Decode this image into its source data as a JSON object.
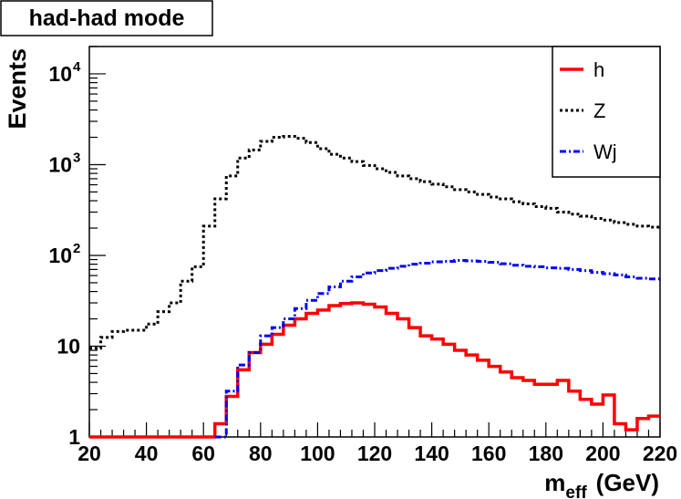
{
  "chart_data": {
    "type": "line",
    "title": "had-had mode",
    "xlabel_main": "m",
    "xlabel_sub": "eff",
    "xlabel_unit": "(GeV)",
    "ylabel": "Events",
    "xlim": [
      20,
      220
    ],
    "ylim": [
      1,
      20000
    ],
    "yscale": "log",
    "x_ticks": [
      "20",
      "40",
      "60",
      "80",
      "100",
      "120",
      "140",
      "160",
      "180",
      "200",
      "220"
    ],
    "y_ticks": [
      {
        "value": 1,
        "base": "1",
        "exp": ""
      },
      {
        "value": 10,
        "base": "10",
        "exp": ""
      },
      {
        "value": 100,
        "base": "10",
        "exp": "2"
      },
      {
        "value": 1000,
        "base": "10",
        "exp": "3"
      },
      {
        "value": 10000,
        "base": "10",
        "exp": "4"
      }
    ],
    "bin_width": 4,
    "legend_position": "top-right",
    "series": [
      {
        "name": "h",
        "color": "#ff0000",
        "style": "solid",
        "bin_starts": [
          20,
          24,
          28,
          32,
          36,
          40,
          44,
          48,
          52,
          56,
          60,
          64,
          68,
          72,
          76,
          80,
          84,
          88,
          92,
          96,
          100,
          104,
          108,
          112,
          116,
          120,
          124,
          128,
          132,
          136,
          140,
          144,
          148,
          152,
          156,
          160,
          164,
          168,
          172,
          176,
          180,
          184,
          188,
          192,
          196,
          200,
          204,
          208,
          212,
          216
        ],
        "values": [
          1,
          1,
          1,
          1,
          1,
          1,
          1,
          1,
          1,
          1,
          1,
          1.4,
          2.8,
          5.5,
          8.5,
          10.5,
          13.5,
          17,
          20,
          23,
          25,
          28,
          29.5,
          30,
          29,
          27,
          23,
          20,
          16,
          13,
          12,
          10.5,
          9,
          8,
          7,
          6,
          5.2,
          4.5,
          4.2,
          3.8,
          3.8,
          4.2,
          3.2,
          2.6,
          2.3,
          2.9,
          1.4,
          1.2,
          1.6,
          1.7
        ]
      },
      {
        "name": "Z",
        "color": "#000000",
        "style": "dotted",
        "bin_starts": [
          20,
          24,
          28,
          32,
          36,
          40,
          44,
          48,
          52,
          56,
          60,
          64,
          68,
          72,
          76,
          80,
          84,
          88,
          92,
          96,
          100,
          104,
          108,
          112,
          116,
          120,
          124,
          128,
          132,
          136,
          140,
          144,
          148,
          152,
          156,
          160,
          164,
          168,
          172,
          176,
          180,
          184,
          188,
          192,
          196,
          200,
          204,
          208,
          212,
          216
        ],
        "values": [
          9.5,
          12.5,
          14.5,
          15,
          15,
          17.5,
          24,
          30,
          52,
          75,
          210,
          420,
          750,
          1180,
          1450,
          1800,
          2000,
          2050,
          1950,
          1750,
          1500,
          1300,
          1180,
          1080,
          980,
          900,
          820,
          750,
          700,
          650,
          610,
          570,
          530,
          500,
          470,
          440,
          420,
          390,
          370,
          345,
          330,
          300,
          285,
          270,
          255,
          245,
          230,
          220,
          210,
          205
        ]
      },
      {
        "name": "Wj",
        "color": "#0000ff",
        "style": "dashdot",
        "bin_starts": [
          64,
          68,
          72,
          76,
          80,
          84,
          88,
          92,
          96,
          100,
          104,
          108,
          112,
          116,
          120,
          124,
          128,
          132,
          136,
          140,
          144,
          148,
          152,
          156,
          160,
          164,
          168,
          172,
          176,
          180,
          184,
          188,
          192,
          196,
          200,
          204,
          208,
          212,
          216
        ],
        "values": [
          1,
          3.2,
          6.2,
          8.5,
          13,
          16,
          20,
          26,
          32,
          38,
          45,
          52,
          58,
          64,
          68,
          72,
          76,
          80,
          82,
          85,
          86,
          88,
          87,
          86,
          84,
          81,
          78,
          76,
          75,
          73,
          72,
          70,
          68,
          65,
          63,
          61,
          58,
          56,
          55
        ]
      }
    ]
  }
}
